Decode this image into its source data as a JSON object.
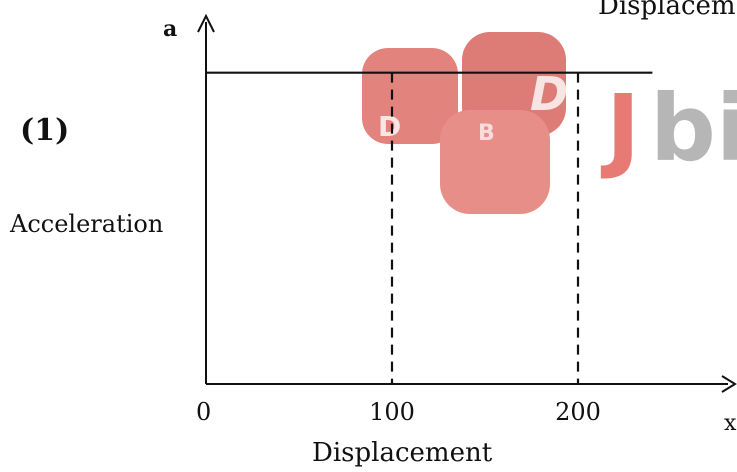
{
  "chart_data": {
    "type": "line",
    "header_text": "Displacem",
    "panel_label": "(1)",
    "xlabel": "Displacement",
    "ylabel": "Acceleration",
    "x_axis_symbol": "x",
    "y_axis_symbol": "a",
    "xlim": [
      0,
      240
    ],
    "ylim": [
      0,
      1
    ],
    "x_ticks": [
      {
        "value": 0,
        "label": "0"
      },
      {
        "value": 100,
        "label": "100"
      },
      {
        "value": 200,
        "label": "200"
      }
    ],
    "series": [
      {
        "x": [
          0,
          240
        ],
        "y": [
          0.86,
          0.86
        ],
        "color": "#111111"
      }
    ],
    "reference_lines": [
      {
        "x": 100,
        "style": "dashed"
      },
      {
        "x": 200,
        "style": "dashed"
      }
    ],
    "grid": false,
    "watermark": {
      "text": "Jbi",
      "colors": [
        "#e0473f",
        "#9a9a9a"
      ],
      "icon": "dice-logo"
    }
  }
}
